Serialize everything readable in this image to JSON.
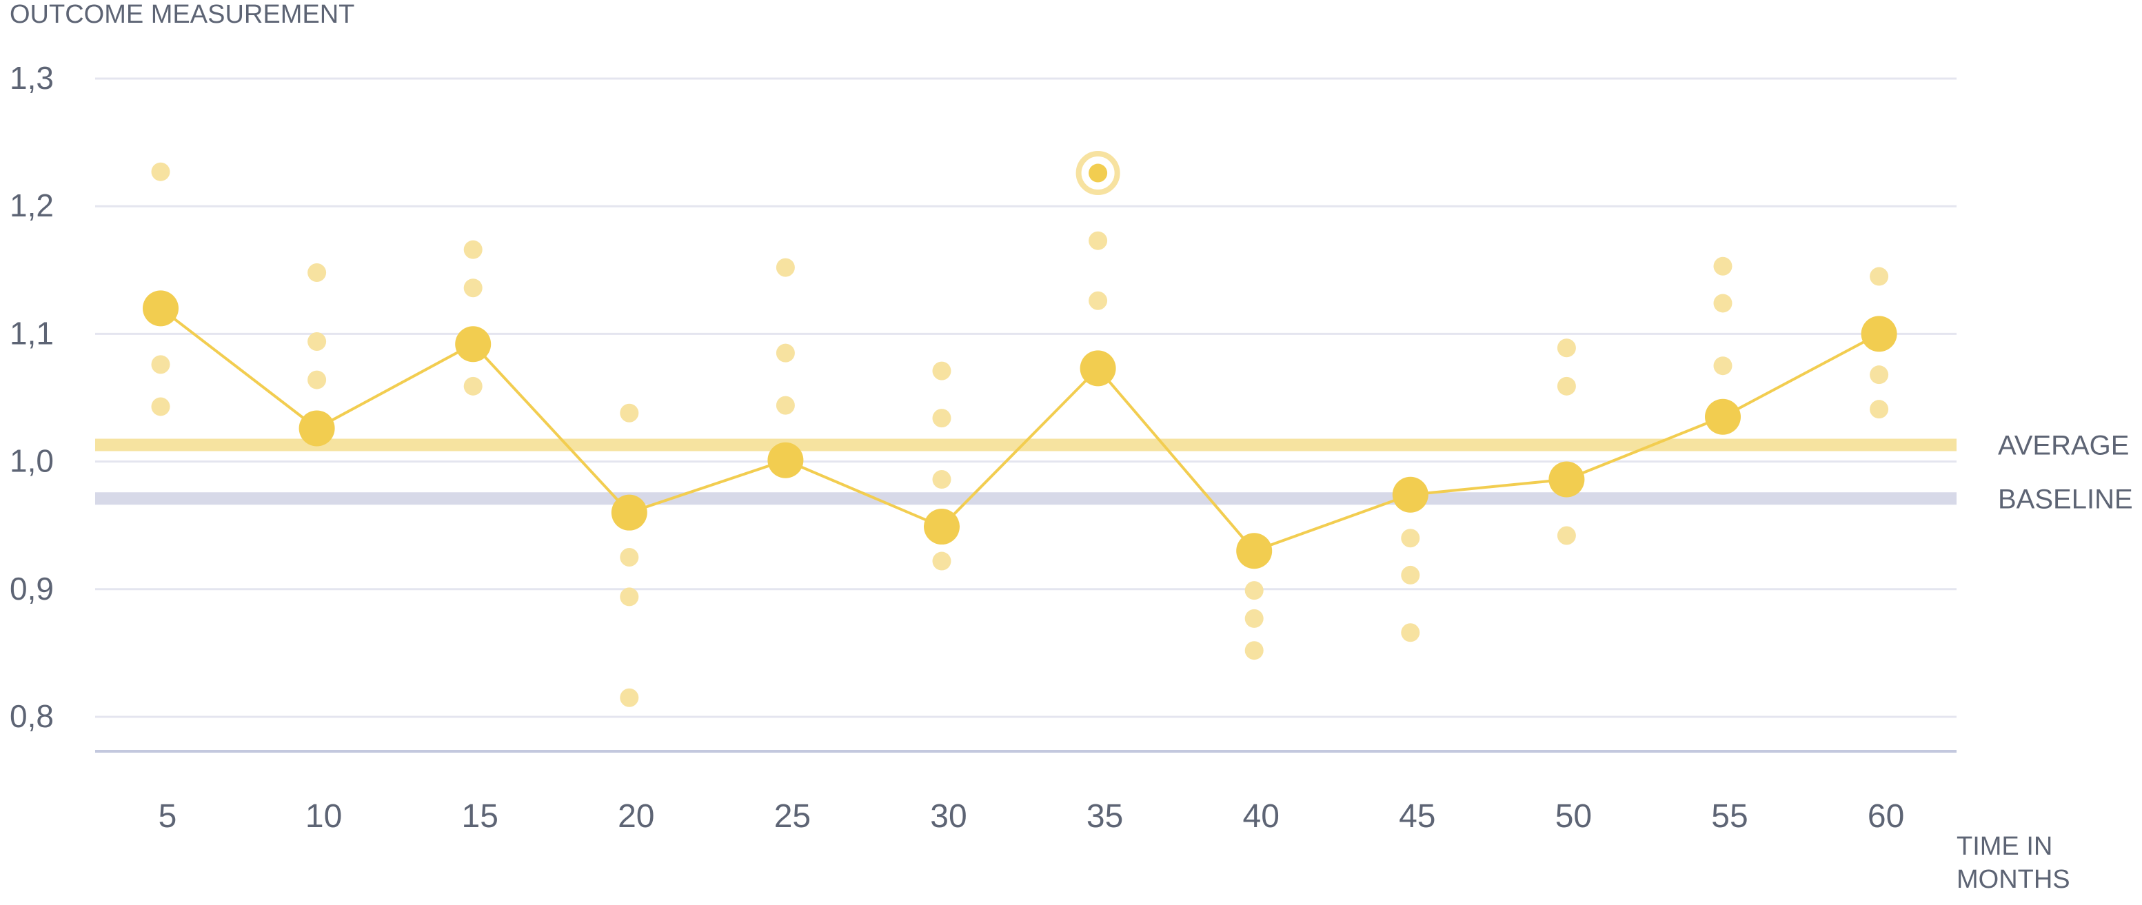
{
  "chart_data": {
    "type": "scatter",
    "ylabel": "OUTCOME MEASUREMENT",
    "xlabel": "TIME IN MONTHS",
    "xlabel_lines": [
      "TIME IN",
      "MONTHS"
    ],
    "ylim": [
      0.8,
      1.3
    ],
    "yticks": [
      {
        "value": 1.3,
        "label": "1,3"
      },
      {
        "value": 1.2,
        "label": "1,2"
      },
      {
        "value": 1.1,
        "label": "1,1"
      },
      {
        "value": 1.0,
        "label": "1,0"
      },
      {
        "value": 0.9,
        "label": "0,9"
      },
      {
        "value": 0.8,
        "label": "0,8"
      }
    ],
    "categories": [
      "5",
      "10",
      "15",
      "20",
      "25",
      "30",
      "35",
      "40",
      "45",
      "50",
      "55",
      "60"
    ],
    "grid": true,
    "reference_lines": [
      {
        "label": "AVERAGE",
        "value": 1.013,
        "color": "#f6e3a0"
      },
      {
        "label": "BASELINE",
        "value": 0.971,
        "color": "#d7d9e8"
      }
    ],
    "mean_series": {
      "color": "#f2cd50",
      "values": [
        1.12,
        1.026,
        1.092,
        0.96,
        1.001,
        0.949,
        1.073,
        0.93,
        0.974,
        0.986,
        1.035,
        1.1
      ]
    },
    "individual_points": {
      "color": "#f7e2a0",
      "values": [
        [
          1.227,
          1.076,
          1.043
        ],
        [
          1.148,
          1.094,
          1.064
        ],
        [
          1.166,
          1.136,
          1.059
        ],
        [
          1.038,
          0.925,
          0.894,
          0.815
        ],
        [
          1.152,
          1.085,
          1.044
        ],
        [
          1.071,
          1.034,
          0.986,
          0.922
        ],
        [
          1.226,
          1.173,
          1.126
        ],
        [
          0.899,
          0.877,
          0.852
        ],
        [
          0.94,
          0.911,
          0.866
        ],
        [
          1.089,
          1.059,
          0.942
        ],
        [
          1.153,
          1.124,
          1.075
        ],
        [
          1.145,
          1.068,
          1.041
        ]
      ]
    },
    "highlighted_point": {
      "category": "35",
      "value": 1.226
    }
  },
  "colors": {
    "grid": "#e4e5ef",
    "baseline_axis": "#c3c8de",
    "text": "#5d6474",
    "mean": "#f2cd50",
    "points": "#f7e2a0",
    "highlight_ring": "#f7e2a0"
  }
}
